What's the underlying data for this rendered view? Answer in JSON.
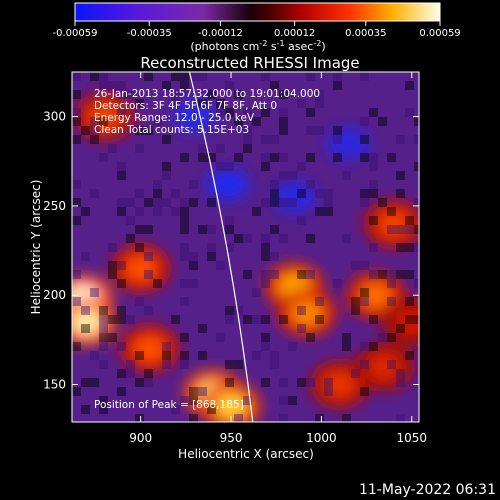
{
  "chart_data": {
    "type": "heatmap",
    "title": "Reconstructed RHESSI Image",
    "xlabel": "Heliocentric X (arcsec)",
    "ylabel": "Heliocentric Y (arcsec)",
    "xlim": [
      862,
      1054
    ],
    "ylim": [
      129,
      325
    ],
    "xticks": [
      900,
      950,
      1000,
      1050
    ],
    "yticks": [
      150,
      200,
      250,
      300
    ],
    "colorbar": {
      "range": [
        -0.00059,
        0.00059
      ],
      "ticks": [
        -0.00059,
        -0.00035,
        -0.00012,
        0.00012,
        0.00035,
        0.00059
      ],
      "tick_labels": [
        "-0.00059",
        "-0.00035",
        "-0.00012",
        "0.00012",
        "0.00035",
        "0.00059"
      ],
      "unit_base": "(photons cm",
      "unit_exp1": "-2",
      "unit_mid": " s",
      "unit_exp2": "-1",
      "unit_mid2": " asec",
      "unit_exp3": "-2",
      "unit_end": ")"
    },
    "annotations": [
      "26-Jan-2013 18:57:32.000 to 19:01:04.000",
      "Detectors: 3F 4F 5F 6F 7F 8F, Att 0",
      "Energy Range: 12.0 - 25.0 keV",
      "Clean     Total counts: 5.15E+03"
    ],
    "peak_label": "Position of Peak = [868,185]",
    "peak": [
      868,
      185
    ],
    "limb_curve": [
      [
        927,
        325
      ],
      [
        950,
        231
      ],
      [
        962,
        129
      ]
    ],
    "hot_regions": [
      {
        "x": 868,
        "y": 198,
        "level": 1.0
      },
      {
        "x": 870,
        "y": 185,
        "level": 0.95
      },
      {
        "x": 940,
        "y": 145,
        "level": 0.9
      },
      {
        "x": 950,
        "y": 138,
        "level": 0.85
      },
      {
        "x": 985,
        "y": 205,
        "level": 0.75
      },
      {
        "x": 992,
        "y": 190,
        "level": 0.7
      },
      {
        "x": 1030,
        "y": 200,
        "level": 0.65
      },
      {
        "x": 1040,
        "y": 240,
        "level": 0.55
      },
      {
        "x": 900,
        "y": 215,
        "level": 0.6
      },
      {
        "x": 880,
        "y": 300,
        "level": 0.55
      },
      {
        "x": 905,
        "y": 170,
        "level": 0.6
      },
      {
        "x": 1010,
        "y": 150,
        "level": 0.5
      },
      {
        "x": 1035,
        "y": 160,
        "level": 0.45
      },
      {
        "x": 1050,
        "y": 185,
        "level": 0.4
      }
    ],
    "cold_regions": [
      {
        "x": 948,
        "y": 262,
        "level": -0.6
      },
      {
        "x": 930,
        "y": 300,
        "level": -0.4
      },
      {
        "x": 985,
        "y": 255,
        "level": -0.35
      },
      {
        "x": 1015,
        "y": 285,
        "level": -0.3
      }
    ]
  },
  "footer": {
    "timestamp": "11-May-2022 06:31"
  }
}
